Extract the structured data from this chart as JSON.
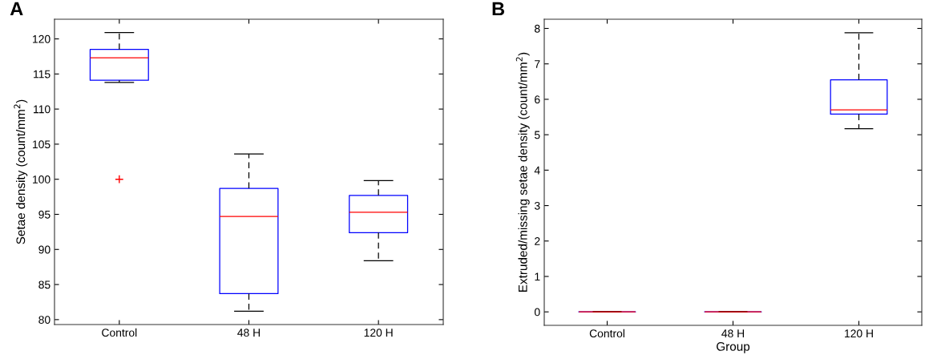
{
  "chart_data": [
    {
      "type": "box",
      "title": "A",
      "ylabel": "Setae density (count/mm$^{2}$)",
      "categories": [
        "Control",
        "48 H",
        "120 H"
      ],
      "ylim": [
        79.3,
        122.8
      ],
      "yticks": [
        80,
        85,
        90,
        95,
        100,
        105,
        110,
        115,
        120
      ],
      "grid": false,
      "line_style": "dashed",
      "boxes": [
        {
          "low": 113.8,
          "q1": 114.1,
          "median": 117.3,
          "q3": 118.5,
          "high": 120.9,
          "outliers": [
            100
          ]
        },
        {
          "low": 81.2,
          "q1": 83.7,
          "median": 94.7,
          "q3": 98.7,
          "high": 103.6
        },
        {
          "low": 88.4,
          "q1": 92.4,
          "median": 95.3,
          "q3": 97.7,
          "high": 99.8
        }
      ]
    },
    {
      "type": "box",
      "title": "B",
      "xlabel": "Group",
      "ylabel": "Extruded/missing setae density (count/mm$^{2}$)",
      "categories": [
        "Control",
        "48 H",
        "120 H"
      ],
      "ylim": [
        -0.38,
        8.26
      ],
      "yticks": [
        0,
        1,
        2,
        3,
        4,
        5,
        6,
        7,
        8
      ],
      "grid": false,
      "line_style": "dashed",
      "boxes": [
        {
          "low": 0,
          "q1": 0,
          "median": 0,
          "q3": 0,
          "high": 0
        },
        {
          "low": 0,
          "q1": 0,
          "median": 0,
          "q3": 0,
          "high": 0
        },
        {
          "low": 5.17,
          "q1": 5.58,
          "median": 5.7,
          "q3": 6.55,
          "high": 7.88
        }
      ]
    }
  ]
}
